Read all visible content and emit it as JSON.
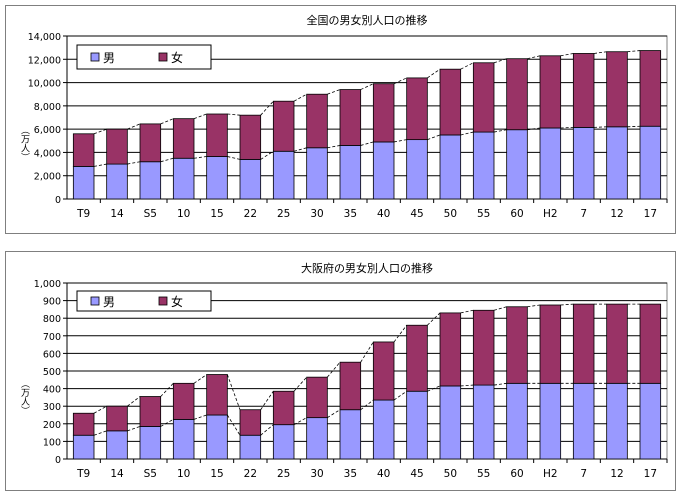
{
  "chart_data": [
    {
      "type": "bar",
      "stacked": true,
      "title": "全国の男女別人口の推移",
      "ylabel": "（万人）",
      "ylim": [
        0,
        14000
      ],
      "yticks": [
        "0",
        "2,000",
        "4,000",
        "6,000",
        "8,000",
        "10,000",
        "12,000",
        "14,000"
      ],
      "grid": true,
      "legend": "top-left",
      "categories": [
        "T9",
        "14",
        "S5",
        "10",
        "15",
        "22",
        "25",
        "30",
        "35",
        "40",
        "45",
        "50",
        "55",
        "60",
        "H2",
        "7",
        "12",
        "17"
      ],
      "series": [
        {
          "name": "男",
          "color": "#9999ff",
          "values": [
            2800,
            3000,
            3200,
            3500,
            3650,
            3400,
            4100,
            4400,
            4600,
            4900,
            5100,
            5500,
            5750,
            5950,
            6100,
            6150,
            6200,
            6250
          ]
        },
        {
          "name": "女",
          "color": "#993366",
          "values": [
            2800,
            3000,
            3250,
            3400,
            3650,
            3800,
            4300,
            4600,
            4800,
            5000,
            5300,
            5650,
            5950,
            6100,
            6200,
            6350,
            6450,
            6500
          ]
        }
      ]
    },
    {
      "type": "bar",
      "stacked": true,
      "title": "大阪府の男女別人口の推移",
      "ylabel": "（万人）",
      "ylim": [
        0,
        1000
      ],
      "yticks": [
        "0",
        "100",
        "200",
        "300",
        "400",
        "500",
        "600",
        "700",
        "800",
        "900",
        "1,000"
      ],
      "grid": true,
      "legend": "top-left",
      "categories": [
        "T9",
        "14",
        "S5",
        "10",
        "15",
        "22",
        "25",
        "30",
        "35",
        "40",
        "45",
        "50",
        "55",
        "60",
        "H2",
        "7",
        "12",
        "17"
      ],
      "series": [
        {
          "name": "男",
          "color": "#9999ff",
          "values": [
            135,
            160,
            185,
            225,
            250,
            135,
            195,
            235,
            280,
            335,
            385,
            415,
            420,
            430,
            430,
            430,
            430,
            430
          ]
        },
        {
          "name": "女",
          "color": "#993366",
          "values": [
            125,
            140,
            170,
            205,
            230,
            145,
            190,
            230,
            270,
            330,
            375,
            415,
            425,
            435,
            445,
            450,
            450,
            450
          ]
        }
      ]
    }
  ]
}
